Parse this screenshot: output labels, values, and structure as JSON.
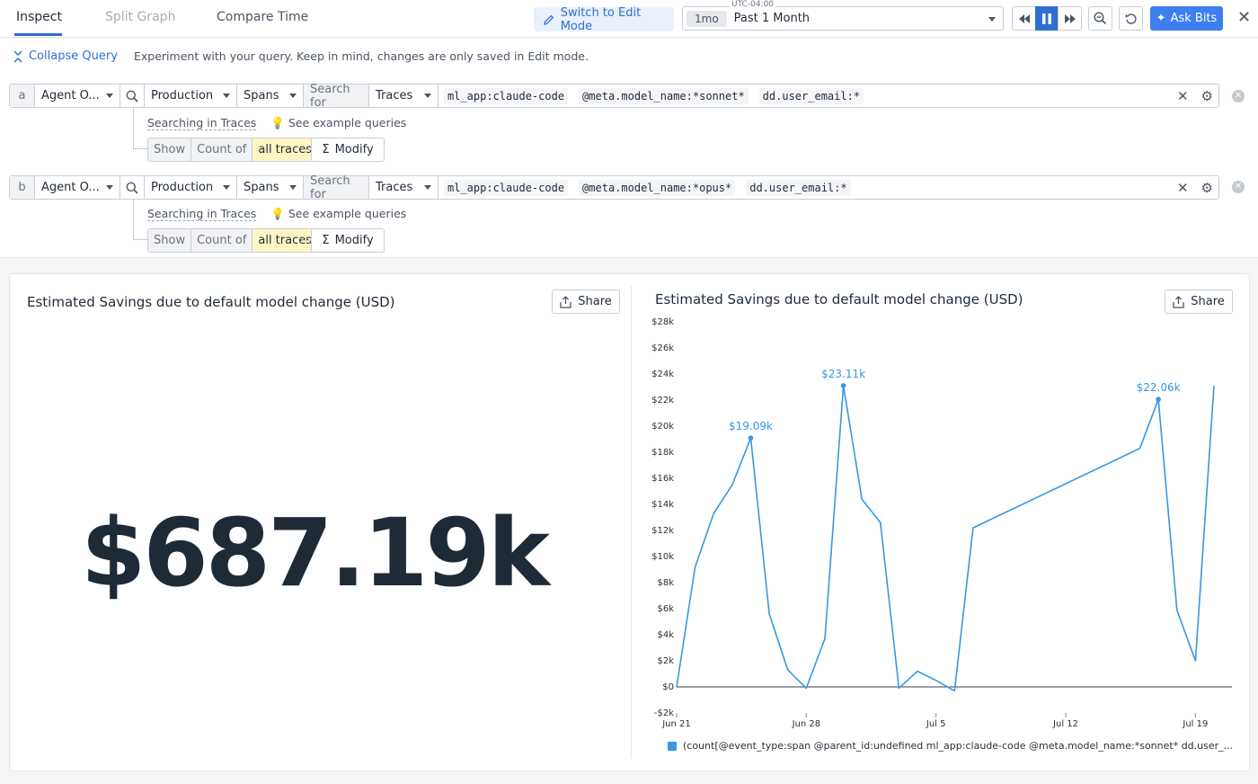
{
  "tabs": {
    "inspect": "Inspect",
    "split_graph": "Split Graph",
    "compare_time": "Compare Time"
  },
  "toolbar": {
    "edit_mode": "Switch to Edit Mode",
    "timezone": "UTC-04:00",
    "time_pill": "1mo",
    "time_range": "Past 1 Month",
    "ask_bits": "Ask Bits"
  },
  "query": {
    "collapse": "Collapse Query",
    "hint": "Experiment with your query. Keep in mind, changes are only saved in Edit mode.",
    "rows": [
      {
        "letter": "a",
        "source": "Agent O...",
        "env": "Production",
        "type": "Spans",
        "search_for": "Search for",
        "target": "Traces",
        "tokens": [
          "ml_app:claude-code",
          "@meta.model_name:*sonnet*",
          "dd.user_email:*"
        ],
        "searching": "Searching in Traces",
        "examples": "See example queries",
        "show": "Show",
        "count_of": "Count of",
        "all_traces": "all traces",
        "modify": "Modify"
      },
      {
        "letter": "b",
        "source": "Agent O...",
        "env": "Production",
        "type": "Spans",
        "search_for": "Search for",
        "target": "Traces",
        "tokens": [
          "ml_app:claude-code",
          "@meta.model_name:*opus*",
          "dd.user_email:*"
        ],
        "searching": "Searching in Traces",
        "examples": "See example queries",
        "show": "Show",
        "count_of": "Count of",
        "all_traces": "all traces",
        "modify": "Modify"
      }
    ]
  },
  "widgets": {
    "left": {
      "title": "Estimated Savings due to default model change (USD)",
      "share": "Share",
      "value": "$687.19k"
    },
    "right": {
      "title": "Estimated Savings due to default model change (USD)",
      "share": "Share",
      "legend": "(count[@event_type:span @parent_id:undefined ml_app:claude-code @meta.model_name:*sonnet* dd.user_..."
    }
  },
  "chart_data": {
    "type": "line",
    "ylim": [
      -2000,
      28000
    ],
    "yticks": [
      -2000,
      0,
      2000,
      4000,
      6000,
      8000,
      10000,
      12000,
      14000,
      16000,
      18000,
      20000,
      22000,
      24000,
      26000,
      28000
    ],
    "ytick_labels": [
      "-$2k",
      "$0",
      "$2k",
      "$4k",
      "$6k",
      "$8k",
      "$10k",
      "$12k",
      "$14k",
      "$16k",
      "$18k",
      "$20k",
      "$22k",
      "$24k",
      "$26k",
      "$28k"
    ],
    "xticks": [
      0,
      7,
      14,
      21,
      28
    ],
    "xtick_labels": [
      "Jun 21",
      "Jun 28",
      "Jul 5",
      "Jul 12",
      "Jul 19"
    ],
    "color": "#3598e2",
    "points": [
      [
        0,
        0
      ],
      [
        1,
        9200
      ],
      [
        2,
        13300
      ],
      [
        3,
        15500
      ],
      [
        4,
        19090
      ],
      [
        5,
        5600
      ],
      [
        6,
        1300
      ],
      [
        7,
        -100
      ],
      [
        8,
        3700
      ],
      [
        9,
        23110
      ],
      [
        10,
        14400
      ],
      [
        11,
        12600
      ],
      [
        12,
        -100
      ],
      [
        13,
        1200
      ],
      [
        14,
        500
      ],
      [
        15,
        -300
      ],
      [
        16,
        12200
      ],
      [
        25,
        18300
      ],
      [
        26,
        22060
      ],
      [
        27,
        5900
      ],
      [
        28,
        2000
      ],
      [
        29,
        23100
      ]
    ],
    "annotations": [
      {
        "x": 4,
        "y": 19090,
        "label": "$19.09k"
      },
      {
        "x": 9,
        "y": 23110,
        "label": "$23.11k"
      },
      {
        "x": 26,
        "y": 22060,
        "label": "$22.06k"
      }
    ]
  }
}
